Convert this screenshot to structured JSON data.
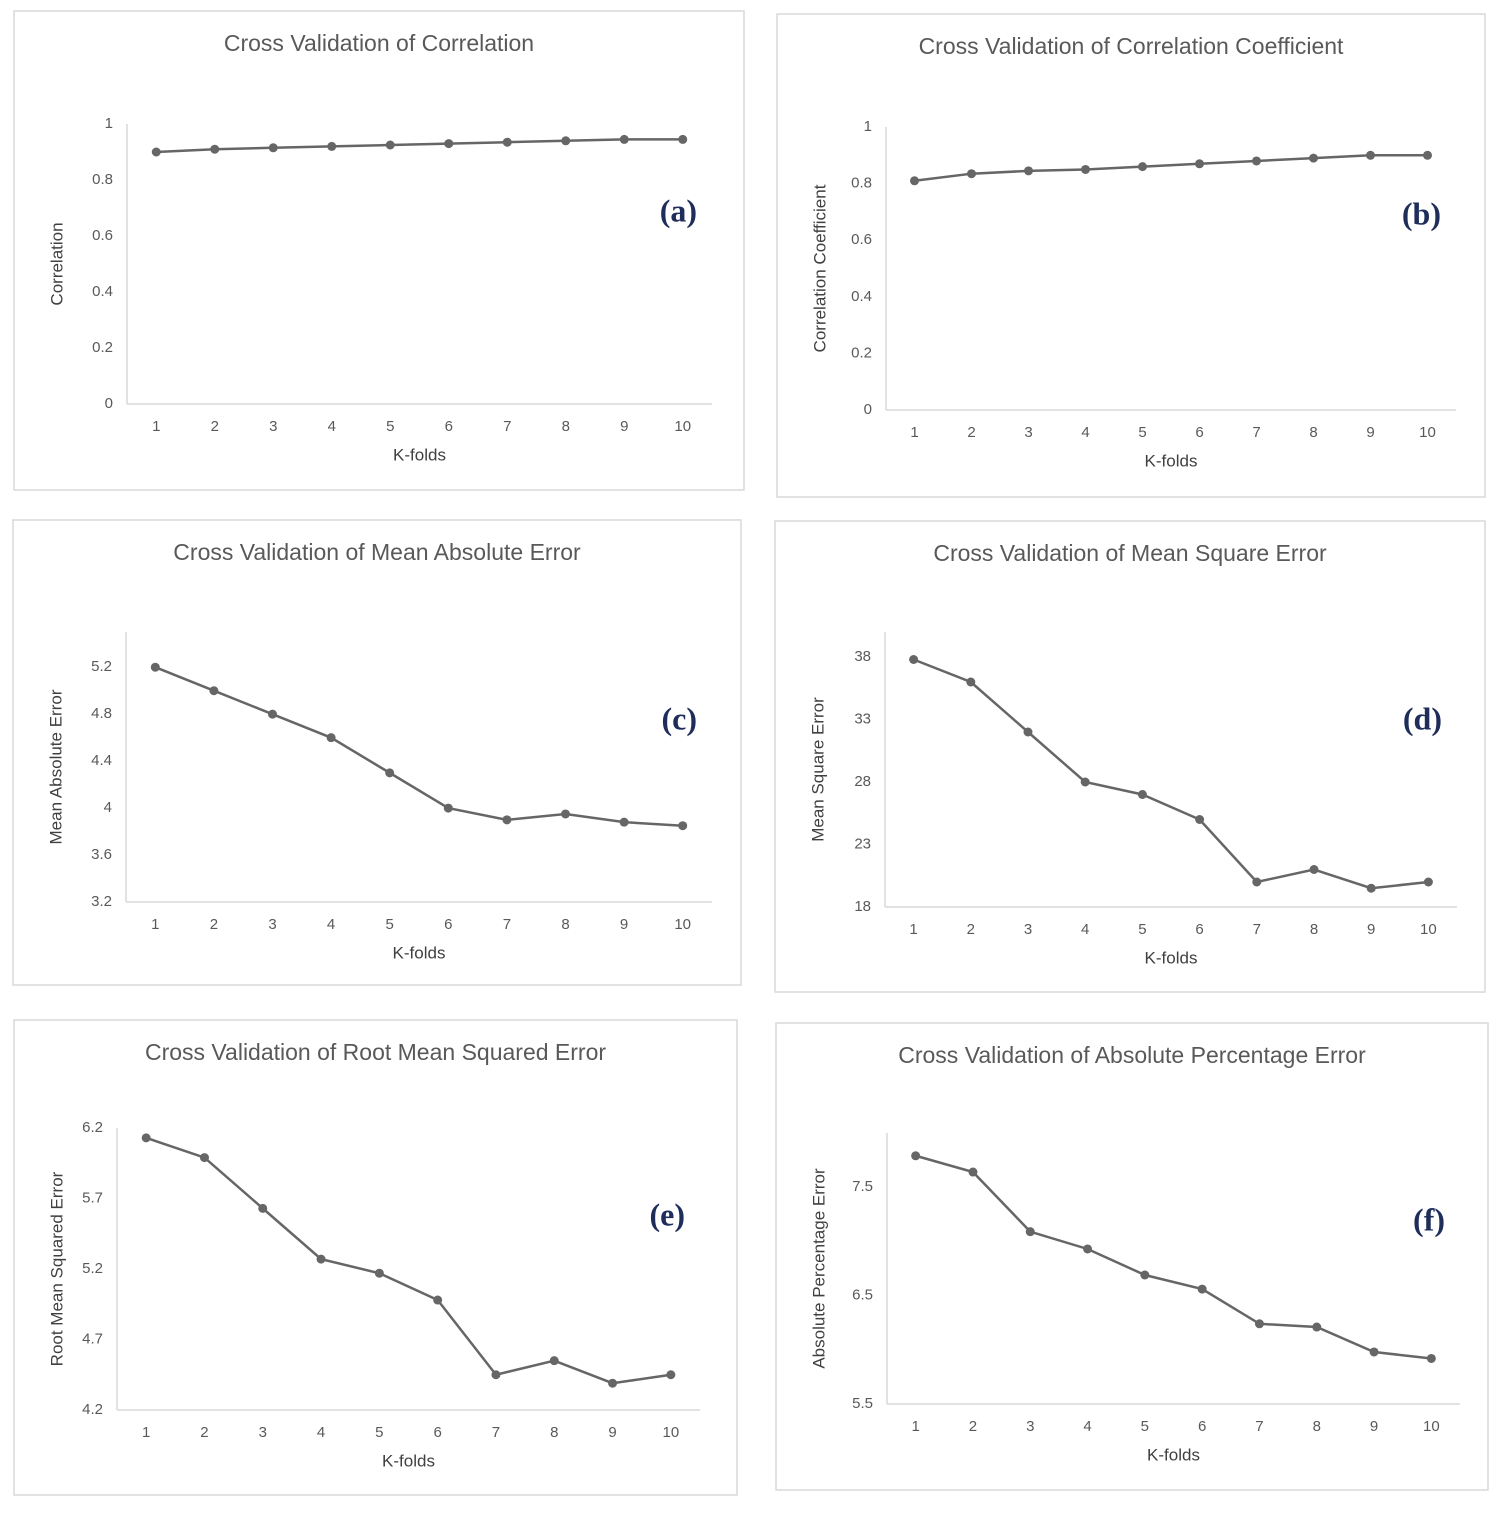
{
  "chart_data": [
    {
      "type": "line",
      "title": "Cross Validation of Correlation",
      "x_label": "K-folds",
      "y_label": "Correlation",
      "annotation": "(a)",
      "categories": [
        "1",
        "2",
        "3",
        "4",
        "5",
        "6",
        "7",
        "8",
        "9",
        "10"
      ],
      "values": [
        0.9,
        0.91,
        0.915,
        0.92,
        0.925,
        0.93,
        0.935,
        0.94,
        0.945,
        0.945
      ],
      "color": "#666666",
      "ylim": [
        0,
        1
      ],
      "yticks": [
        0,
        0.2,
        0.4,
        0.6,
        0.8,
        1
      ]
    },
    {
      "type": "line",
      "title": "Cross Validation of Correlation Coefficient",
      "x_label": "K-folds",
      "y_label": "Correlation Coefficient",
      "annotation": "(b)",
      "categories": [
        "1",
        "2",
        "3",
        "4",
        "5",
        "6",
        "7",
        "8",
        "9",
        "10"
      ],
      "values": [
        0.81,
        0.835,
        0.845,
        0.85,
        0.86,
        0.87,
        0.88,
        0.89,
        0.9,
        0.9
      ],
      "color": "#666666",
      "ylim": [
        0,
        1
      ],
      "yticks": [
        0,
        0.2,
        0.4,
        0.6,
        0.8,
        1
      ]
    },
    {
      "type": "line",
      "title": "Cross Validation of Mean Absolute Error",
      "x_label": "K-folds",
      "y_label": "Mean Absolute Error",
      "annotation": "(c)",
      "categories": [
        "1",
        "2",
        "3",
        "4",
        "5",
        "6",
        "7",
        "8",
        "9",
        "10"
      ],
      "values": [
        5.2,
        5.0,
        4.8,
        4.6,
        4.3,
        4.0,
        3.9,
        3.95,
        3.88,
        3.85
      ],
      "color": "#666666",
      "ylim": [
        3.2,
        5.5
      ],
      "yticks": [
        3.2,
        3.6,
        4,
        4.4,
        4.8,
        5.2
      ]
    },
    {
      "type": "line",
      "title": "Cross Validation of Mean Square Error",
      "x_label": "K-folds",
      "y_label": "Mean Square Error",
      "annotation": "(d)",
      "categories": [
        "1",
        "2",
        "3",
        "4",
        "5",
        "6",
        "7",
        "8",
        "9",
        "10"
      ],
      "values": [
        37.8,
        36,
        32,
        28,
        27,
        25,
        20,
        21,
        19.5,
        20
      ],
      "color": "#666666",
      "ylim": [
        18,
        40
      ],
      "yticks": [
        18,
        23,
        28,
        33,
        38
      ]
    },
    {
      "type": "line",
      "title": "Cross Validation of Root Mean Squared Error",
      "x_label": "K-folds",
      "y_label": "Root Mean Squared Error",
      "annotation": "(e)",
      "categories": [
        "1",
        "2",
        "3",
        "4",
        "5",
        "6",
        "7",
        "8",
        "9",
        "10"
      ],
      "values": [
        6.13,
        5.99,
        5.63,
        5.27,
        5.17,
        4.98,
        4.45,
        4.55,
        4.39,
        4.45
      ],
      "color": "#666666",
      "ylim": [
        4.2,
        6.2
      ],
      "yticks": [
        4.2,
        4.7,
        5.2,
        5.7,
        6.2
      ]
    },
    {
      "type": "line",
      "title": "Cross Validation of Absolute Percentage Error",
      "x_label": "K-folds",
      "y_label": "Absolute Percentage Error",
      "annotation": "(f)",
      "categories": [
        "1",
        "2",
        "3",
        "4",
        "5",
        "6",
        "7",
        "8",
        "9",
        "10"
      ],
      "values": [
        7.79,
        7.64,
        7.09,
        6.93,
        6.69,
        6.56,
        6.24,
        6.21,
        5.98,
        5.92
      ],
      "color": "#666666",
      "ylim": [
        5.5,
        8
      ],
      "yticks": [
        5.5,
        6.5,
        7.5
      ]
    }
  ]
}
